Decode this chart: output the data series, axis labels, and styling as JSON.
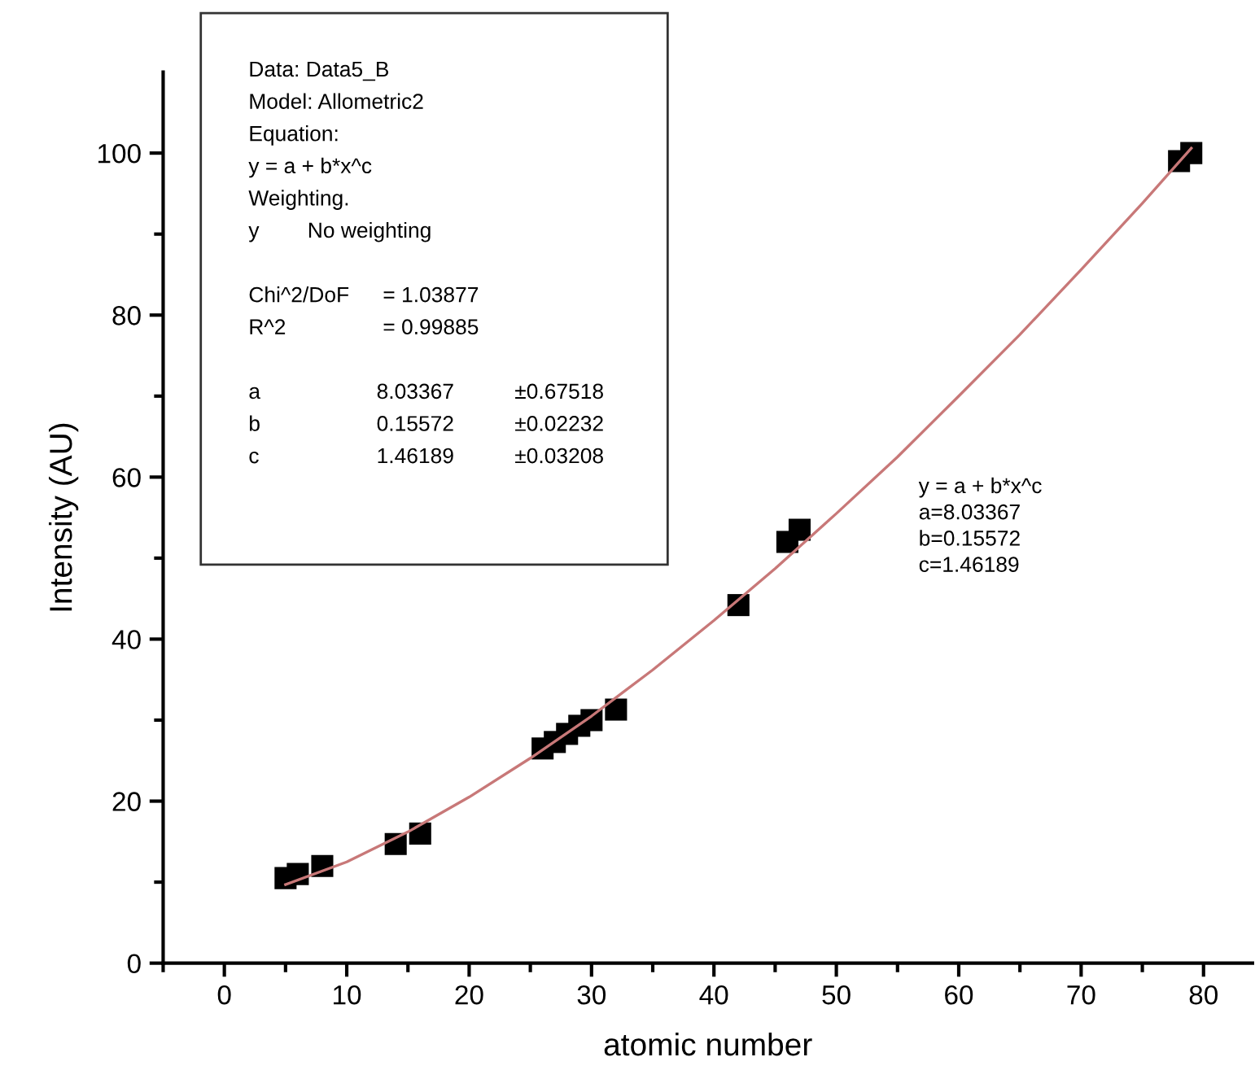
{
  "chart_data": {
    "type": "scatter",
    "xlabel": "atomic number",
    "ylabel": "Intensity (AU)",
    "xlim": [
      -5,
      84
    ],
    "ylim": [
      0,
      110
    ],
    "xticks": [
      {
        "value": -5,
        "label": null
      },
      0,
      {
        "value": 5,
        "label": null
      },
      10,
      {
        "value": 15,
        "label": null
      },
      20,
      {
        "value": 25,
        "label": null
      },
      30,
      {
        "value": 35,
        "label": null
      },
      40,
      {
        "value": 45,
        "label": null
      },
      50,
      {
        "value": 55,
        "label": null
      },
      60,
      {
        "value": 65,
        "label": null
      },
      70,
      {
        "value": 75,
        "label": null
      },
      80
    ],
    "yticks": [
      0,
      {
        "value": 10,
        "label": null
      },
      20,
      {
        "value": 30,
        "label": null
      },
      40,
      {
        "value": 50,
        "label": null
      },
      60,
      {
        "value": 70,
        "label": null
      },
      80,
      {
        "value": 90,
        "label": null
      },
      100
    ],
    "grid": false,
    "legend": false,
    "series": [
      {
        "type": "line",
        "color": "#c87878",
        "marker": "none",
        "line_style": "solid",
        "x": [
          5,
          10,
          15,
          20,
          25,
          30,
          35,
          40,
          45,
          50,
          55,
          60,
          65,
          70,
          75,
          79
        ],
        "values": [
          9.7,
          12.5,
          16.2,
          20.5,
          25.3,
          30.5,
          36.2,
          42.3,
          48.7,
          55.5,
          62.5,
          70.0,
          77.6,
          85.6,
          93.8,
          100.6
        ]
      },
      {
        "color": "#000000",
        "marker": "square",
        "x": [
          5,
          6,
          8,
          14,
          16,
          26,
          27,
          28,
          29,
          30,
          32,
          42,
          46,
          47,
          78,
          79
        ],
        "values": [
          10.5,
          11,
          12,
          14.7,
          16,
          26.5,
          27.3,
          28.3,
          29.3,
          30,
          31.3,
          44.2,
          52,
          53.5,
          99,
          100
        ]
      }
    ],
    "annotations": [
      "Data: Data5_B\nModel: Allometric2\nEquation:\ny = a + b*x^c\nWeighting.\ny  No weighting\n\nChi^2/DoF  = 1.03877\nR^2  = 0.99885\n\na  8.03367  ±0.67518\nb  0.15572  ±0.02232\nc  1.46189  ±0.03208",
      "y = a + b*x^c\na=8.03367\nb=0.15572\nc=1.46189"
    ]
  }
}
